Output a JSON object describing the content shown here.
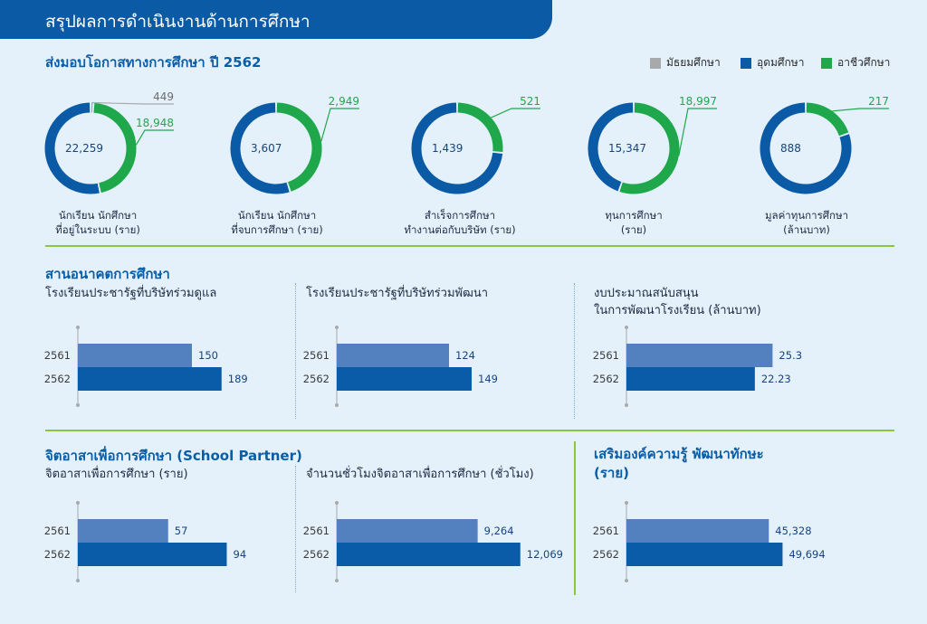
{
  "header": {
    "title": "สรุปผลการดำเนินงานด้านการศึกษา"
  },
  "colors": {
    "secondary": "#a8a9ab",
    "higher": "#0b5aa6",
    "vocational": "#1fa74b",
    "bar_2561": "#5380be",
    "bar_2562": "#0a5ba8",
    "header": "#0b5aa6",
    "divider": "#8cc63f"
  },
  "opportunity": {
    "title": "ส่งมอบโอกาสทางการศึกษา ปี 2562",
    "legend": [
      {
        "label": "มัธยมศึกษา",
        "color": "#a8a9ab"
      },
      {
        "label": "อุดมศึกษา",
        "color": "#0b5aa6"
      },
      {
        "label": "อาชีวศึกษา",
        "color": "#1fa74b"
      }
    ]
  },
  "chart_data": [
    {
      "type": "pie",
      "label_lines": [
        "นักเรียน นักศึกษา",
        "ที่อยู่ในระบบ (ราย)"
      ],
      "slices": [
        {
          "series": "อุดมศึกษา",
          "value": 22259,
          "label": "22,259"
        },
        {
          "series": "มัธยมศึกษา",
          "value": 449,
          "label": "449"
        },
        {
          "series": "อาชีวศึกษา",
          "value": 18948,
          "label": "18,948"
        }
      ]
    },
    {
      "type": "pie",
      "label_lines": [
        "นักเรียน นักศึกษา",
        "ที่จบการศึกษา (ราย)"
      ],
      "slices": [
        {
          "series": "อุดมศึกษา",
          "value": 3607,
          "label": "3,607"
        },
        {
          "series": "อาชีวศึกษา",
          "value": 2949,
          "label": "2,949"
        }
      ]
    },
    {
      "type": "pie",
      "label_lines": [
        "สำเร็จการศึกษา",
        "ทำงานต่อกับบริษัท (ราย)"
      ],
      "slices": [
        {
          "series": "อุดมศึกษา",
          "value": 1439,
          "label": "1,439"
        },
        {
          "series": "อาชีวศึกษา",
          "value": 521,
          "label": "521"
        }
      ]
    },
    {
      "type": "pie",
      "label_lines": [
        "ทุนการศึกษา",
        "(ราย)"
      ],
      "slices": [
        {
          "series": "อุดมศึกษา",
          "value": 15347,
          "label": "15,347"
        },
        {
          "series": "อาชีวศึกษา",
          "value": 18997,
          "label": "18,997"
        }
      ]
    },
    {
      "type": "pie",
      "label_lines": [
        "มูลค่าทุนการศึกษา",
        "(ล้านบาท)"
      ],
      "slices": [
        {
          "series": "อุดมศึกษา",
          "value": 888,
          "label": "888"
        },
        {
          "series": "อาชีวศึกษา",
          "value": 217,
          "label": "217"
        }
      ]
    },
    {
      "type": "bar",
      "orientation": "horizontal",
      "title_lines": [
        "โรงเรียนประชารัฐที่บริษัทร่วมดูแล"
      ],
      "categories": [
        "2561",
        "2562"
      ],
      "values": [
        150,
        189
      ],
      "value_labels": [
        "150",
        "189"
      ]
    },
    {
      "type": "bar",
      "orientation": "horizontal",
      "title_lines": [
        "โรงเรียนประชารัฐที่บริษัทร่วมพัฒนา"
      ],
      "categories": [
        "2561",
        "2562"
      ],
      "values": [
        124,
        149
      ],
      "value_labels": [
        "124",
        "149"
      ]
    },
    {
      "type": "bar",
      "orientation": "horizontal",
      "title_lines": [
        "งบประมาณสนับสนุน",
        "ในการพัฒนาโรงเรียน (ล้านบาท)"
      ],
      "categories": [
        "2561",
        "2562"
      ],
      "values": [
        25.3,
        22.23
      ],
      "value_labels": [
        "25.3",
        "22.23"
      ]
    },
    {
      "type": "bar",
      "orientation": "horizontal",
      "title_lines": [
        "จิตอาสาเพื่อการศึกษา (ราย)"
      ],
      "categories": [
        "2561",
        "2562"
      ],
      "values": [
        57,
        94
      ],
      "value_labels": [
        "57",
        "94"
      ]
    },
    {
      "type": "bar",
      "orientation": "horizontal",
      "title_lines": [
        "จำนวนชั่วโมงจิตอาสาเพื่อการศึกษา (ชั่วโมง)"
      ],
      "categories": [
        "2561",
        "2562"
      ],
      "values": [
        9264,
        12069
      ],
      "value_labels": [
        "9,264",
        "12,069"
      ]
    },
    {
      "type": "bar",
      "orientation": "horizontal",
      "title_lines": [],
      "categories": [
        "2561",
        "2562"
      ],
      "values": [
        45328,
        49694
      ],
      "value_labels": [
        "45,328",
        "49,694"
      ]
    }
  ],
  "future": {
    "title": "สานอนาคตการศึกษา"
  },
  "partner": {
    "title": "จิตอาสาเพื่อการศึกษา (School Partner)"
  },
  "skills": {
    "title_lines": [
      "เสริมองค์ความรู้ พัฒนาทักษะ",
      "(ราย)"
    ]
  }
}
